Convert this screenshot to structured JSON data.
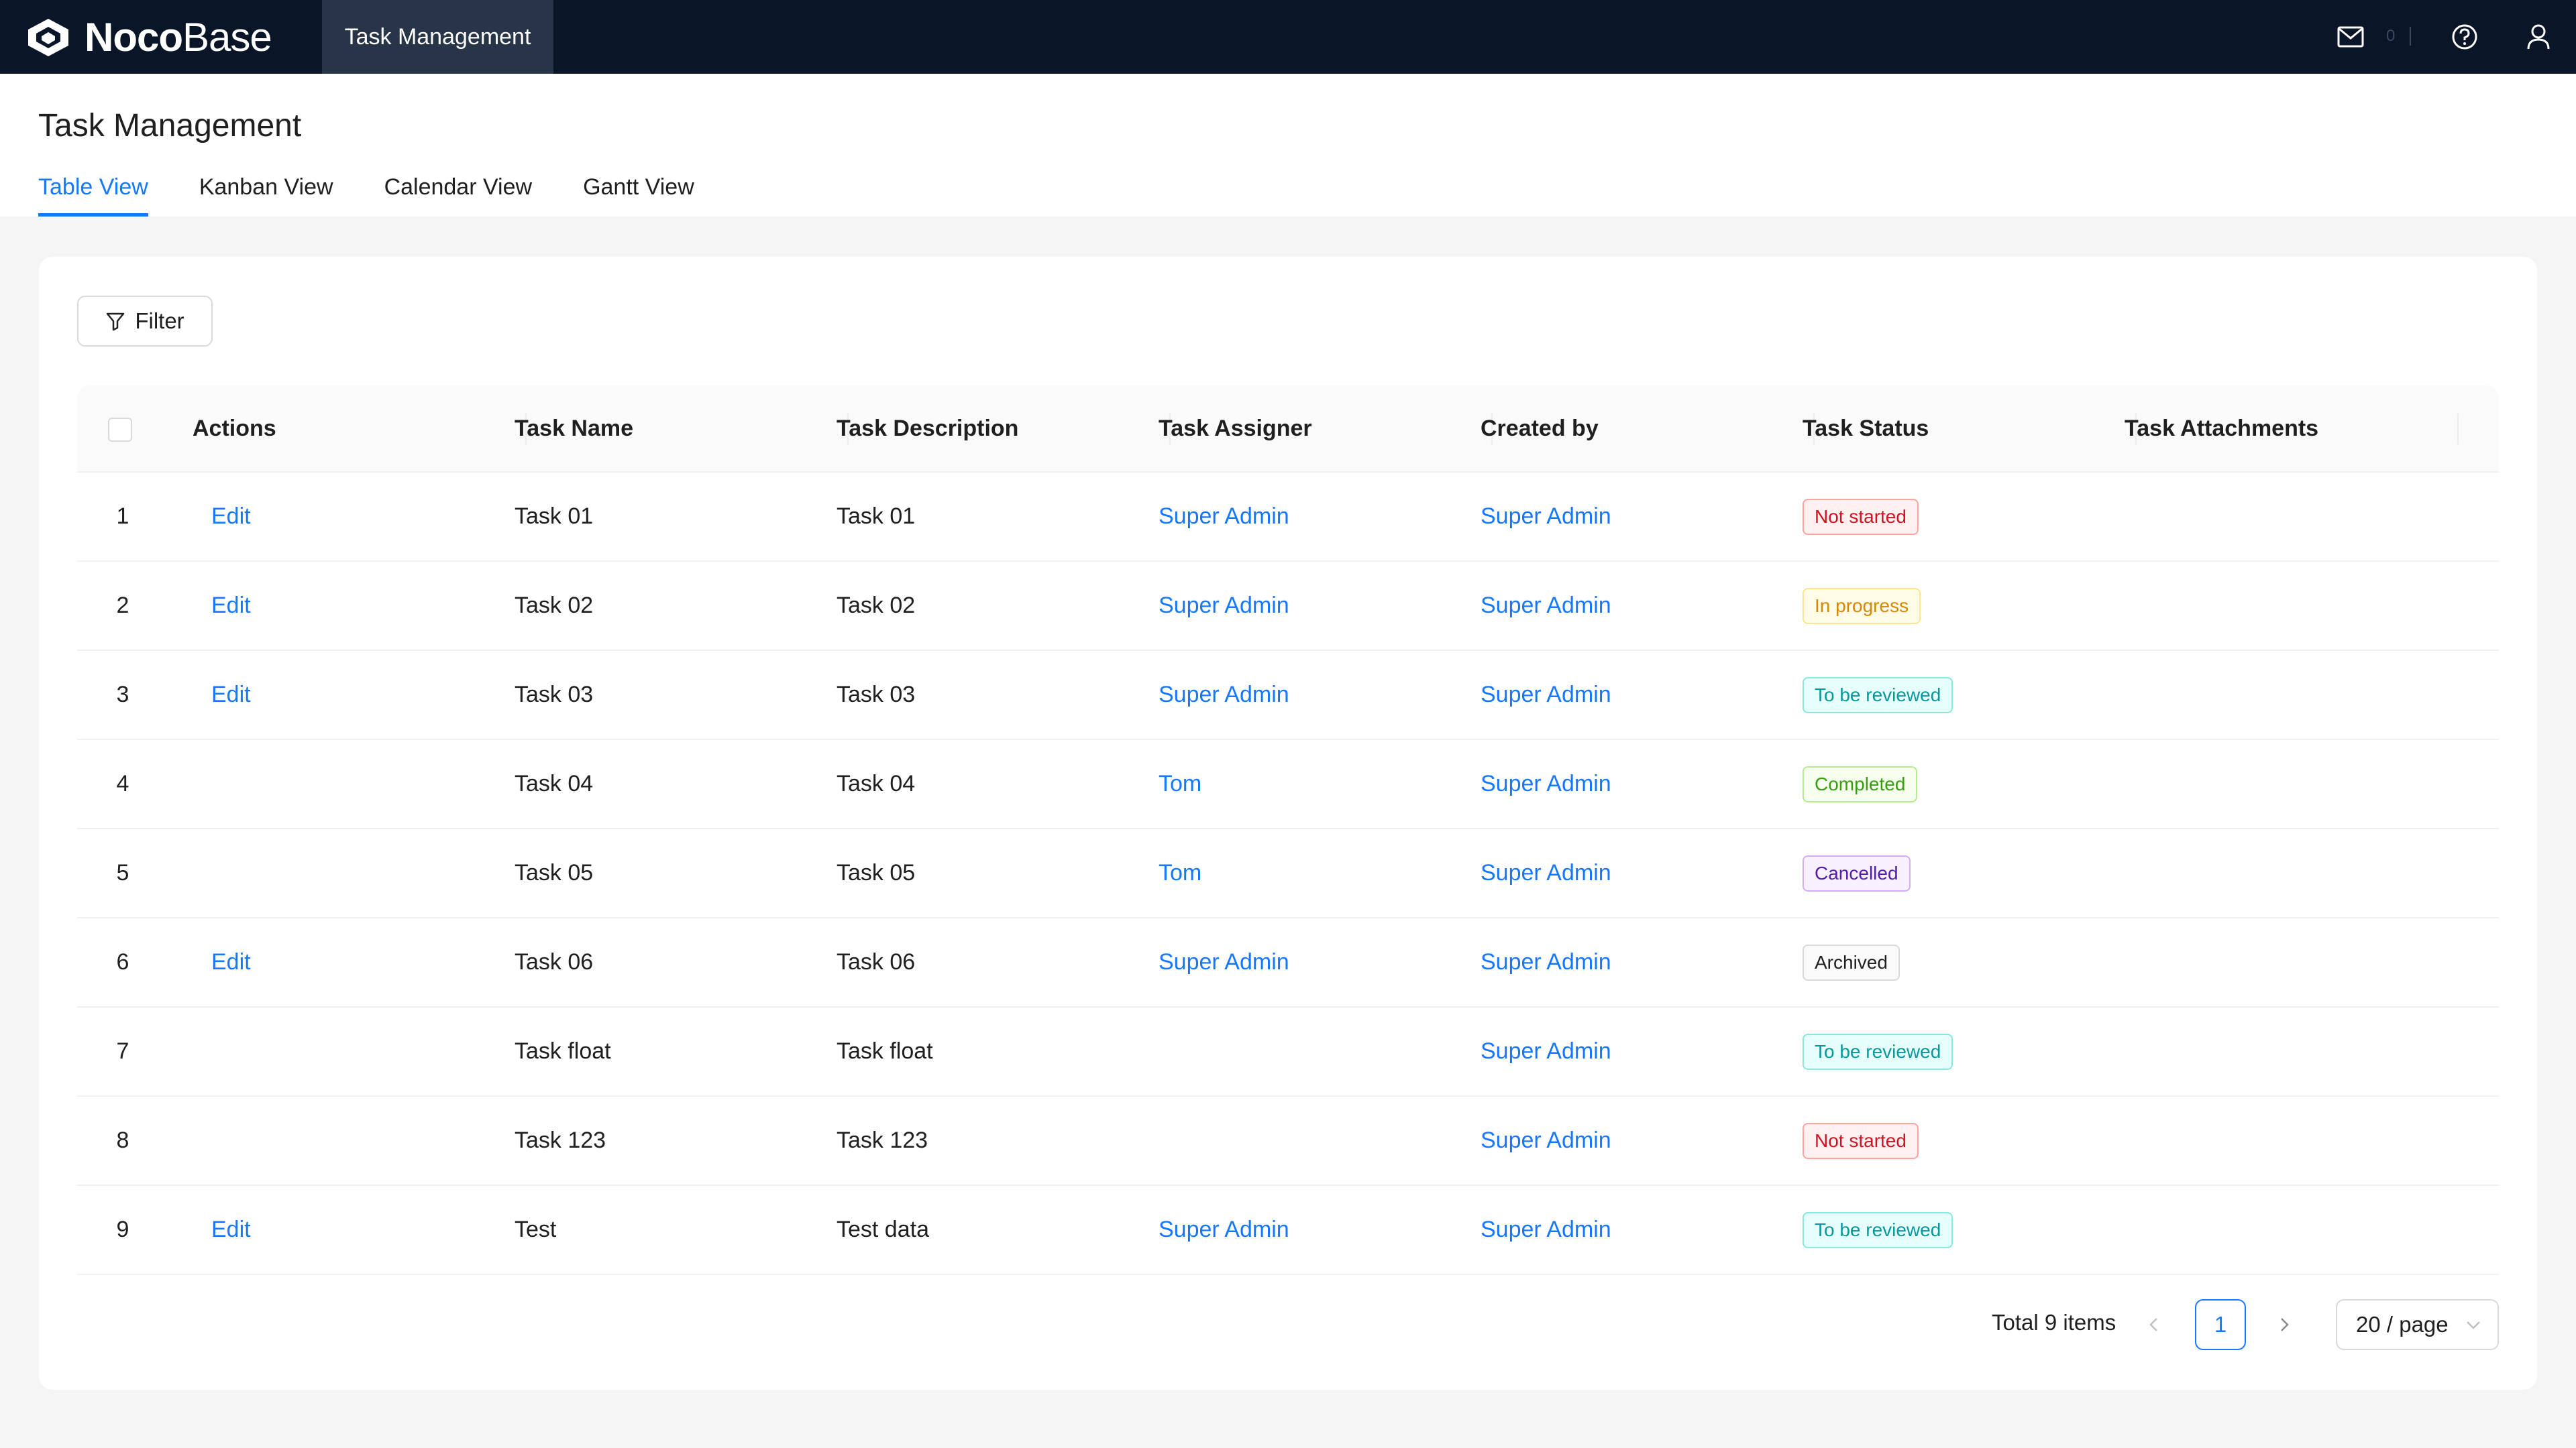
{
  "app": {
    "logo_bold": "Noco",
    "logo_light": "Base",
    "top_menu": "Task Management",
    "notification_count": "0"
  },
  "page": {
    "title": "Task Management",
    "tabs": [
      "Table View",
      "Kanban View",
      "Calendar View",
      "Gantt View"
    ],
    "active_tab": "Table View"
  },
  "toolbar": {
    "filter_label": "Filter"
  },
  "table": {
    "columns": [
      "Actions",
      "Task Name",
      "Task Description",
      "Task Assigner",
      "Created by",
      "Task Status",
      "Task Attachments"
    ],
    "rows": [
      {
        "index": "1",
        "action": "Edit",
        "name": "Task 01",
        "description": "Task 01",
        "assigner": "Super Admin",
        "created_by": "Super Admin",
        "status": "Not started"
      },
      {
        "index": "2",
        "action": "Edit",
        "name": "Task 02",
        "description": "Task 02",
        "assigner": "Super Admin",
        "created_by": "Super Admin",
        "status": "In progress"
      },
      {
        "index": "3",
        "action": "Edit",
        "name": "Task 03",
        "description": "Task 03",
        "assigner": "Super Admin",
        "created_by": "Super Admin",
        "status": "To be reviewed"
      },
      {
        "index": "4",
        "action": "",
        "name": "Task 04",
        "description": "Task 04",
        "assigner": "Tom",
        "created_by": "Super Admin",
        "status": "Completed"
      },
      {
        "index": "5",
        "action": "",
        "name": "Task 05",
        "description": "Task 05",
        "assigner": "Tom",
        "created_by": "Super Admin",
        "status": "Cancelled"
      },
      {
        "index": "6",
        "action": "Edit",
        "name": "Task 06",
        "description": "Task 06",
        "assigner": "Super Admin",
        "created_by": "Super Admin",
        "status": "Archived"
      },
      {
        "index": "7",
        "action": "",
        "name": "Task float",
        "description": "Task float",
        "assigner": "",
        "created_by": "Super Admin",
        "status": "To be reviewed"
      },
      {
        "index": "8",
        "action": "",
        "name": "Task 123",
        "description": "Task 123",
        "assigner": "",
        "created_by": "Super Admin",
        "status": "Not started"
      },
      {
        "index": "9",
        "action": "Edit",
        "name": "Test",
        "description": "Test data",
        "assigner": "Super Admin",
        "created_by": "Super Admin",
        "status": "To be reviewed"
      }
    ]
  },
  "status_colors": {
    "Not started": {
      "color": "#cf1322",
      "bg": "#fff1f0",
      "border": "#ffa39e"
    },
    "In progress": {
      "color": "#d48806",
      "bg": "#fffbe6",
      "border": "#ffe58f"
    },
    "To be reviewed": {
      "color": "#08979c",
      "bg": "#e6fffb",
      "border": "#87e8de"
    },
    "Completed": {
      "color": "#389e0d",
      "bg": "#f6ffed",
      "border": "#b7eb8f"
    },
    "Cancelled": {
      "color": "#531dab",
      "bg": "#f9f0ff",
      "border": "#d3adf7"
    },
    "Archived": {
      "color": "#1f1f1f",
      "bg": "#fafafa",
      "border": "#d9d9d9"
    }
  },
  "pagination": {
    "total_label": "Total 9 items",
    "current_page": "1",
    "page_size": "20 / page"
  },
  "icons": [
    "mail-icon",
    "help-icon",
    "user-icon",
    "filter-icon",
    "chevron-left-icon",
    "chevron-right-icon",
    "chevron-down-icon"
  ]
}
